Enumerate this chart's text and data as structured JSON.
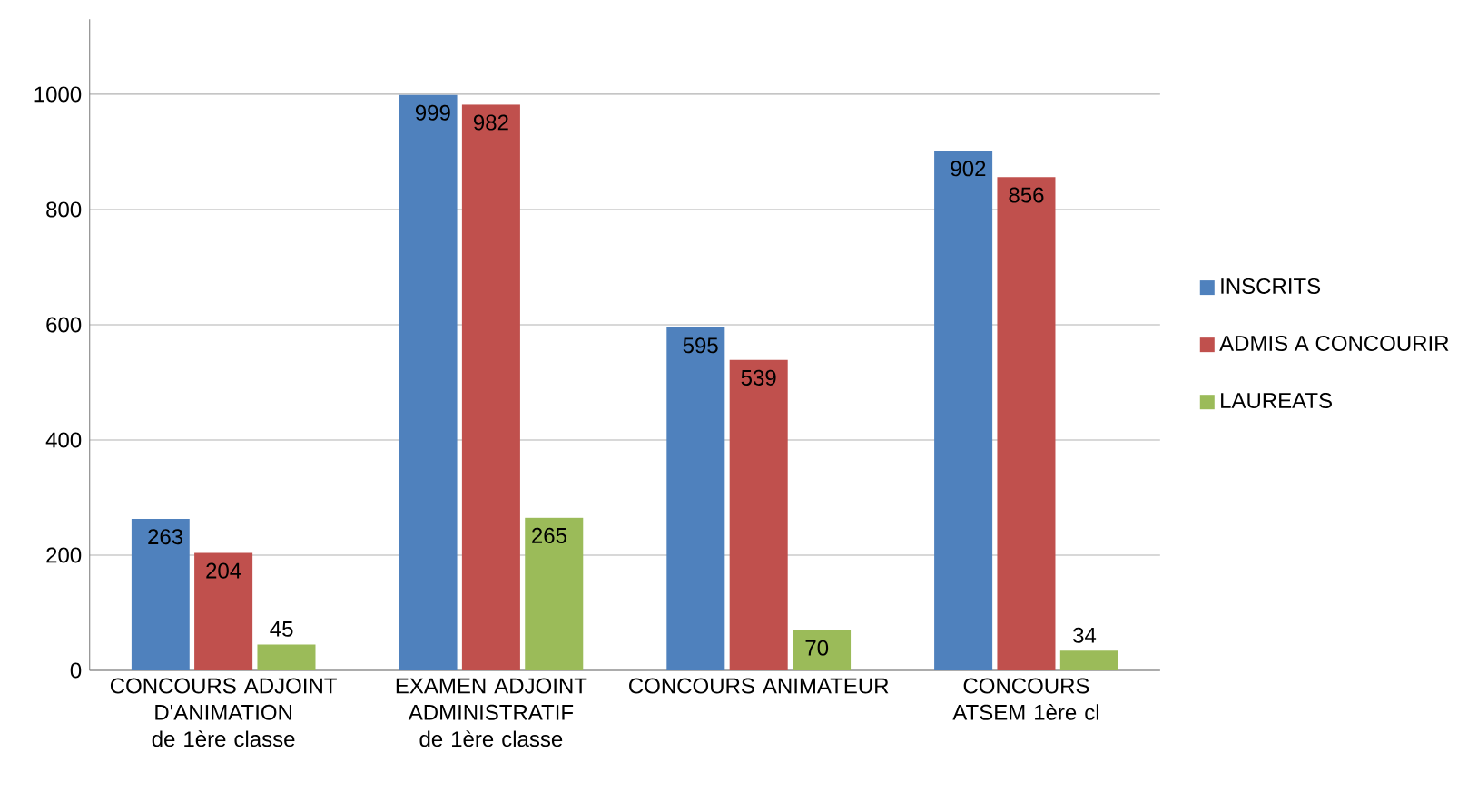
{
  "chart_data": {
    "type": "bar",
    "categories": [
      "CONCOURS ADJOINT D'ANIMATION de 1ère classe",
      "EXAMEN ADJOINT ADMINISTRATIF de 1ère classe",
      "CONCOURS ANIMATEUR",
      "CONCOURS ATSEM 1ère cl"
    ],
    "series": [
      {
        "name": "INSCRITS",
        "color": "#4f81bd",
        "values": [
          263,
          999,
          595,
          902
        ]
      },
      {
        "name": "ADMIS A CONCOURIR",
        "color": "#c0504d",
        "values": [
          204,
          982,
          539,
          856
        ]
      },
      {
        "name": "LAUREATS",
        "color": "#9bbb59",
        "values": [
          45,
          265,
          70,
          34
        ]
      }
    ],
    "ylim": [
      0,
      1130
    ],
    "yticks": [
      0,
      200,
      400,
      600,
      800,
      1000
    ],
    "grid": "y",
    "legend": "right",
    "data_labels": true
  }
}
